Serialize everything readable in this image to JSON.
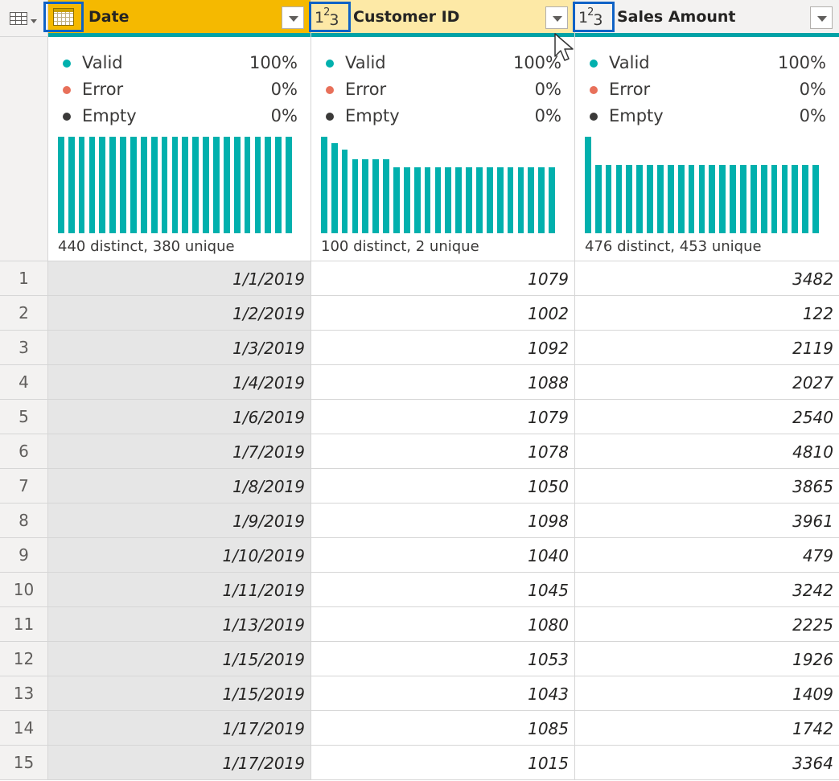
{
  "columns": [
    {
      "name": "Date",
      "type_icon": "calendar-icon",
      "profile": {
        "valid": "Valid",
        "valid_pct": "100%",
        "error": "Error",
        "error_pct": "0%",
        "empty": "Empty",
        "empty_pct": "0%",
        "distinct": "440 distinct, 380 unique",
        "histogram": [
          1,
          1,
          1,
          1,
          1,
          1,
          1,
          1,
          1,
          1,
          1,
          1,
          1,
          1,
          1,
          1,
          1,
          1,
          1,
          1,
          1,
          1,
          1
        ]
      }
    },
    {
      "name": "Customer ID",
      "type_icon": "number-icon",
      "type_label": "3",
      "profile": {
        "valid": "Valid",
        "valid_pct": "100%",
        "error": "Error",
        "error_pct": "0%",
        "empty": "Empty",
        "empty_pct": "0%",
        "distinct": "100 distinct, 2 unique",
        "histogram": [
          1.0,
          0.93,
          0.87,
          0.77,
          0.77,
          0.77,
          0.77,
          0.68,
          0.68,
          0.68,
          0.68,
          0.68,
          0.68,
          0.68,
          0.68,
          0.68,
          0.68,
          0.68,
          0.68,
          0.68,
          0.68,
          0.68,
          0.68
        ]
      }
    },
    {
      "name": "Sales Amount",
      "type_icon": "number-icon",
      "type_label": "3",
      "profile": {
        "valid": "Valid",
        "valid_pct": "100%",
        "error": "Error",
        "error_pct": "0%",
        "empty": "Empty",
        "empty_pct": "0%",
        "distinct": "476 distinct, 453 unique",
        "histogram": [
          1.0,
          0.71,
          0.71,
          0.71,
          0.71,
          0.71,
          0.71,
          0.71,
          0.71,
          0.71,
          0.71,
          0.71,
          0.71,
          0.71,
          0.71,
          0.71,
          0.71,
          0.71,
          0.71,
          0.71,
          0.71,
          0.71,
          0.71
        ]
      }
    }
  ],
  "colors": {
    "valid": "#01b0ad",
    "error": "#e8705a",
    "empty": "#3b3a39",
    "selected_header": "#f5b900"
  },
  "rows": [
    {
      "n": "1",
      "date": "1/1/2019",
      "cust": "1079",
      "sales": "3482"
    },
    {
      "n": "2",
      "date": "1/2/2019",
      "cust": "1002",
      "sales": "122"
    },
    {
      "n": "3",
      "date": "1/3/2019",
      "cust": "1092",
      "sales": "2119"
    },
    {
      "n": "4",
      "date": "1/4/2019",
      "cust": "1088",
      "sales": "2027"
    },
    {
      "n": "5",
      "date": "1/6/2019",
      "cust": "1079",
      "sales": "2540"
    },
    {
      "n": "6",
      "date": "1/7/2019",
      "cust": "1078",
      "sales": "4810"
    },
    {
      "n": "7",
      "date": "1/8/2019",
      "cust": "1050",
      "sales": "3865"
    },
    {
      "n": "8",
      "date": "1/9/2019",
      "cust": "1098",
      "sales": "3961"
    },
    {
      "n": "9",
      "date": "1/10/2019",
      "cust": "1040",
      "sales": "479"
    },
    {
      "n": "10",
      "date": "1/11/2019",
      "cust": "1045",
      "sales": "3242"
    },
    {
      "n": "11",
      "date": "1/13/2019",
      "cust": "1080",
      "sales": "2225"
    },
    {
      "n": "12",
      "date": "1/15/2019",
      "cust": "1053",
      "sales": "1926"
    },
    {
      "n": "13",
      "date": "1/15/2019",
      "cust": "1043",
      "sales": "1409"
    },
    {
      "n": "14",
      "date": "1/17/2019",
      "cust": "1085",
      "sales": "1742"
    },
    {
      "n": "15",
      "date": "1/17/2019",
      "cust": "1015",
      "sales": "3364"
    }
  ]
}
